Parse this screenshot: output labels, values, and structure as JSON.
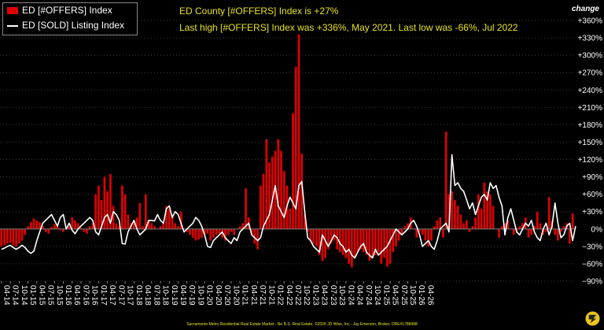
{
  "legend": {
    "bar_series_label": "ED [#OFFERS] Index",
    "line_series_label": "ED [SOLD] Listing Index"
  },
  "headline": {
    "line1": "ED County [#OFFERS] Index is +27%",
    "line2": "Last high [#OFFERS] Index was +336%, May 2021. Last low was -66%, Jul 2022"
  },
  "axis_title_right": "change",
  "footer": "Sacramento Metro Residential Real Estate Market - No B.S. Real Estate, ©2026 JD Wise, Inc - Jay Emerson, Broker, DRE#1788488",
  "colors": {
    "bars": "#e00000",
    "line": "#ffffff",
    "headline": "#e8e21f",
    "background": "#000000"
  },
  "chart_data": {
    "type": "bar",
    "ylim": [
      -90,
      360
    ],
    "y_ticks": [
      -90,
      -60,
      -30,
      0,
      30,
      60,
      90,
      120,
      150,
      180,
      210,
      240,
      270,
      300,
      330,
      360
    ],
    "y_tick_suffix": "%",
    "x_start": "2014-04",
    "x_tick_labels": [
      "04-14",
      "07-14",
      "10-14",
      "01-15",
      "04-15",
      "07-15",
      "10-15",
      "01-16",
      "04-16",
      "07-16",
      "10-16",
      "01-17",
      "04-17",
      "07-17",
      "10-17",
      "01-18",
      "04-18",
      "07-18",
      "10-18",
      "01-19",
      "04-19",
      "07-19",
      "10-19",
      "01-20",
      "04-20",
      "07-20",
      "10-20",
      "01-21",
      "04-21",
      "07-21",
      "10-21",
      "01-22",
      "04-22",
      "07-22",
      "10-22",
      "01-23",
      "04-23",
      "07-23",
      "10-23",
      "01-24",
      "04-24",
      "07-24",
      "10-24",
      "01-25",
      "04-25",
      "07-25",
      "10-25",
      "01-26",
      "04-26"
    ],
    "series": [
      {
        "name": "ED [#OFFERS] Index",
        "kind": "bar",
        "values": [
          -30,
          -28,
          -25,
          -24,
          -28,
          -30,
          -25,
          -20,
          -10,
          5,
          12,
          18,
          15,
          12,
          5,
          -5,
          -8,
          3,
          8,
          5,
          -2,
          -5,
          0,
          5,
          20,
          15,
          10,
          2,
          -5,
          -8,
          5,
          10,
          60,
          75,
          50,
          90,
          65,
          95,
          40,
          10,
          5,
          75,
          60,
          25,
          10,
          15,
          20,
          45,
          5,
          60,
          15,
          10,
          5,
          0,
          5,
          10,
          40,
          35,
          25,
          10,
          5,
          30,
          0,
          -5,
          -10,
          -15,
          -20,
          -18,
          -15,
          -10,
          -8,
          -20,
          -15,
          -10,
          -8,
          -15,
          -20,
          -10,
          -5,
          -10,
          0,
          5,
          10,
          70,
          20,
          -10,
          -25,
          -35,
          75,
          95,
          155,
          115,
          125,
          135,
          155,
          135,
          100,
          75,
          35,
          200,
          280,
          336,
          130,
          25,
          -5,
          -20,
          -25,
          -30,
          -45,
          -55,
          -50,
          -35,
          -25,
          -20,
          -35,
          -40,
          -45,
          -50,
          -60,
          -66,
          -50,
          -40,
          -35,
          -40,
          -45,
          -55,
          -50,
          -45,
          -40,
          -60,
          -50,
          -65,
          -60,
          -40,
          -30,
          -20,
          -10,
          5,
          10,
          20,
          0,
          -15,
          -5,
          -10,
          -20,
          -30,
          -20,
          5,
          15,
          20,
          -15,
          168,
          60,
          65,
          50,
          40,
          25,
          10,
          15,
          -5,
          5,
          20,
          60,
          35,
          80,
          65,
          60,
          40,
          0,
          -15,
          5,
          10,
          15,
          0,
          -10,
          -5,
          5,
          10,
          20,
          -15,
          -10,
          5,
          30,
          10,
          -10,
          -5,
          55,
          15,
          -10,
          -20,
          -5,
          5,
          10,
          -25,
          27
        ]
      },
      {
        "name": "ED [SOLD] Listing Index",
        "kind": "line",
        "values": [
          -35,
          -33,
          -30,
          -28,
          -32,
          -35,
          -32,
          -28,
          -32,
          -38,
          -42,
          -38,
          -20,
          -5,
          10,
          15,
          20,
          25,
          15,
          5,
          20,
          25,
          0,
          10,
          -2,
          -8,
          0,
          5,
          10,
          15,
          20,
          15,
          -5,
          -10,
          5,
          20,
          25,
          10,
          30,
          25,
          15,
          -25,
          -26,
          -5,
          5,
          15,
          0,
          -10,
          -5,
          0,
          15,
          15,
          14,
          25,
          15,
          10,
          35,
          40,
          20,
          30,
          25,
          10,
          -5,
          0,
          5,
          10,
          20,
          15,
          5,
          -10,
          -30,
          -32,
          -20,
          -15,
          -10,
          -5,
          -15,
          -20,
          -25,
          -15,
          -20,
          -5,
          0,
          5,
          10,
          -10,
          -15,
          -20,
          -15,
          5,
          15,
          25,
          50,
          75,
          40,
          30,
          20,
          40,
          55,
          45,
          35,
          75,
          82,
          30,
          -15,
          -20,
          -30,
          -35,
          -40,
          -10,
          -20,
          -30,
          -20,
          -10,
          -15,
          -25,
          -30,
          -40,
          -35,
          -45,
          -50,
          -40,
          -30,
          -25,
          -40,
          -45,
          -50,
          -35,
          -45,
          -40,
          -35,
          -30,
          -20,
          -10,
          0,
          -5,
          -10,
          -5,
          0,
          10,
          15,
          5,
          -10,
          -30,
          -25,
          -20,
          -30,
          -35,
          -20,
          0,
          5,
          10,
          -5,
          128,
          75,
          80,
          70,
          65,
          50,
          35,
          45,
          25,
          40,
          55,
          60,
          50,
          80,
          70,
          75,
          55,
          40,
          -10,
          20,
          35,
          15,
          -5,
          -10,
          0,
          10,
          5,
          15,
          -5,
          -15,
          -20,
          0,
          10,
          -10,
          5,
          45,
          10,
          -15,
          -10,
          5,
          10,
          -20,
          5
        ]
      }
    ]
  }
}
